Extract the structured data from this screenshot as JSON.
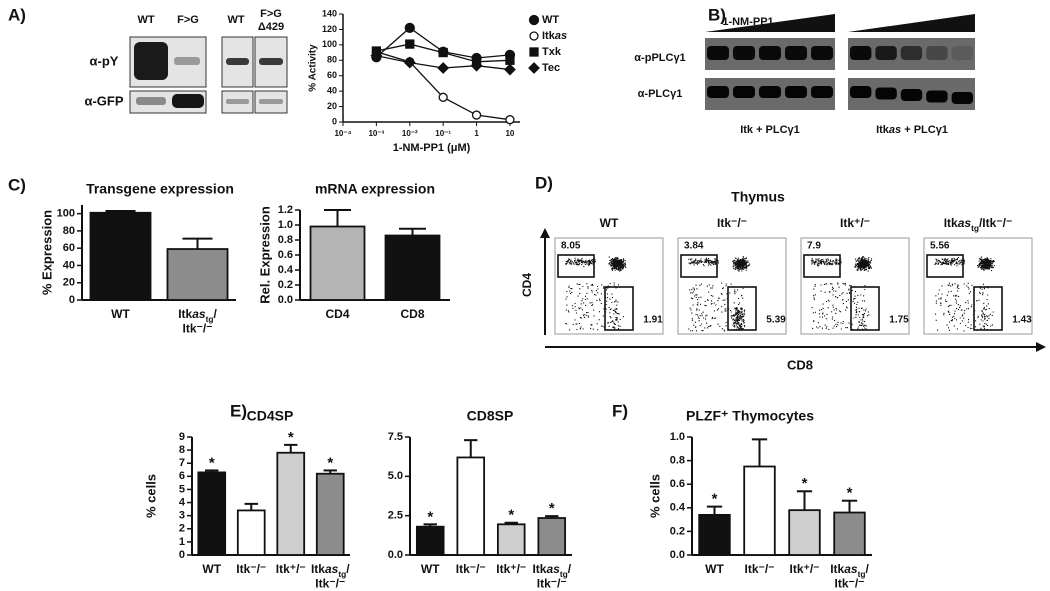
{
  "panel_labels": [
    "A)",
    "B)",
    "C)",
    "D)",
    "E)",
    "F)"
  ],
  "blot_a": {
    "lanes_left": [
      "WT",
      "F>G"
    ],
    "lanes_right": [
      "WT",
      [
        [
          "F>G"
        ],
        [
          "Δ429"
        ]
      ]
    ],
    "rows": [
      "α-pY",
      "α-GFP"
    ]
  },
  "blot_b": {
    "treatment": "1-NM-PP1",
    "rows": [
      "α-pPLCγ1",
      "α-PLCγ1"
    ],
    "groups": [
      "Itk + PLCγ1",
      [
        "Itk",
        {
          "text": "as",
          "style": "i"
        },
        " + PLCγ1"
      ]
    ]
  },
  "flow": {
    "title": "Thymus",
    "y_label": "CD4",
    "x_label": "CD8",
    "plots": [
      {
        "title": "WT",
        "cd4": "8.05",
        "cd8": "1.91"
      },
      {
        "title": "Itk⁻/⁻",
        "cd4": "3.84",
        "cd8": "5.39"
      },
      {
        "title": "Itk⁺/⁻",
        "cd4": "7.9",
        "cd8": "1.75"
      },
      {
        "title": [
          "Itk",
          {
            "text": "as",
            "style": "i"
          },
          {
            "text": "tg",
            "style": "sub"
          },
          "/Itk⁻/⁻"
        ],
        "cd4": "5.56",
        "cd8": "1.43"
      }
    ]
  },
  "chart_data": [
    {
      "type": "line",
      "x_label": "1-NM-PP1 (μM)",
      "y_label": "% Activity",
      "xlog": true,
      "x": [
        0.001,
        0.01,
        0.1,
        1,
        10
      ],
      "xlim": [
        0.0001,
        20
      ],
      "xticks": [
        {
          "value": 0.0001,
          "label": "10⁻⁴"
        },
        {
          "value": 0.001,
          "label": "10⁻³"
        },
        {
          "value": 0.01,
          "label": "10⁻²"
        },
        {
          "value": 0.1,
          "label": "10⁻¹"
        },
        1,
        10
      ],
      "ylim": [
        0,
        140
      ],
      "yticks": [
        0,
        20,
        40,
        60,
        80,
        100,
        120,
        140
      ],
      "legend": "right",
      "series": [
        {
          "name": "WT",
          "marker": "circle",
          "color": "#111111",
          "values": [
            84,
            122,
            91,
            83,
            87
          ]
        },
        {
          "name": [
            "Itk",
            {
              "text": "as",
              "style": "i"
            }
          ],
          "marker": "open-circle",
          "color": "#111111",
          "values": [
            91,
            78,
            32,
            9,
            3
          ]
        },
        {
          "name": "Txk",
          "marker": "square",
          "color": "#111111",
          "values": [
            92,
            101,
            90,
            78,
            80
          ]
        },
        {
          "name": "Tec",
          "marker": "diamond",
          "color": "#111111",
          "values": [
            86,
            77,
            70,
            73,
            68
          ]
        }
      ]
    },
    {
      "type": "bar",
      "title": "Transgene expression",
      "y_label": "% Expression",
      "categories": [
        "WT",
        [
          [
            "Itk",
            {
              "text": "as",
              "style": "i"
            },
            {
              "text": "tg",
              "style": "sub"
            },
            "/"
          ],
          [
            "Itk⁻/⁻"
          ]
        ]
      ],
      "values": [
        101,
        59
      ],
      "errors": [
        2,
        12
      ],
      "colors": [
        "#111111",
        "#8c8c8c"
      ],
      "ylim": [
        0,
        110
      ],
      "yticks": [
        0,
        20,
        40,
        60,
        80,
        100
      ]
    },
    {
      "type": "bar",
      "title": "mRNA expression",
      "y_label": "Rel. Expression",
      "categories": [
        "CD4",
        "CD8"
      ],
      "values": [
        0.98,
        0.86
      ],
      "errors": [
        0.22,
        0.09
      ],
      "colors": [
        "#b4b4b4",
        "#111111"
      ],
      "ylim": [
        0,
        1.2
      ],
      "yticks": [
        {
          "value": 0,
          "label": "0.0"
        },
        0.2,
        0.4,
        0.6,
        0.8,
        {
          "value": 1,
          "label": "1.0"
        },
        1.2
      ]
    },
    {
      "type": "bar",
      "title": "CD4SP",
      "y_label": "% cells",
      "categories": [
        "WT",
        "Itk⁻/⁻",
        "Itk⁺/⁻",
        [
          [
            "Itk",
            {
              "text": "as",
              "style": "i"
            },
            {
              "text": "tg",
              "style": "sub"
            },
            "/"
          ],
          [
            "Itk⁻/⁻"
          ]
        ]
      ],
      "values": [
        6.3,
        3.4,
        7.8,
        6.2
      ],
      "errors": [
        0.15,
        0.5,
        0.6,
        0.25
      ],
      "annotations": [
        "*",
        null,
        "*",
        "*"
      ],
      "colors": [
        "#111111",
        "#ffffff",
        "#cfcfcf",
        "#8c8c8c"
      ],
      "ylim": [
        0,
        9
      ],
      "yticks": [
        0,
        1,
        2,
        3,
        4,
        5,
        6,
        7,
        8,
        9
      ]
    },
    {
      "type": "bar",
      "title": "CD8SP",
      "categories": [
        "WT",
        "Itk⁻/⁻",
        "Itk⁺/⁻",
        [
          [
            "Itk",
            {
              "text": "as",
              "style": "i"
            },
            {
              "text": "tg",
              "style": "sub"
            },
            "/"
          ],
          [
            "Itk⁻/⁻"
          ]
        ]
      ],
      "values": [
        1.8,
        6.2,
        1.95,
        2.35
      ],
      "errors": [
        0.15,
        1.1,
        0.1,
        0.12
      ],
      "annotations": [
        "*",
        null,
        "*",
        "*"
      ],
      "colors": [
        "#111111",
        "#ffffff",
        "#cfcfcf",
        "#8c8c8c"
      ],
      "ylim": [
        0,
        7.5
      ],
      "yticks": [
        {
          "value": 0,
          "label": "0.0"
        },
        2.5,
        {
          "value": 5,
          "label": "5.0"
        },
        7.5
      ]
    },
    {
      "type": "bar",
      "title": "PLZF⁺ Thymocytes",
      "y_label": "% cells",
      "categories": [
        "WT",
        "Itk⁻/⁻",
        "Itk⁺/⁻",
        [
          [
            "Itk",
            {
              "text": "as",
              "style": "i"
            },
            {
              "text": "tg",
              "style": "sub"
            },
            "/"
          ],
          [
            "Itk⁻/⁻"
          ]
        ]
      ],
      "values": [
        0.34,
        0.75,
        0.38,
        0.36
      ],
      "errors": [
        0.07,
        0.23,
        0.16,
        0.1
      ],
      "annotations": [
        "*",
        null,
        "*",
        "*"
      ],
      "colors": [
        "#111111",
        "#ffffff",
        "#cfcfcf",
        "#8c8c8c"
      ],
      "ylim": [
        0,
        1
      ],
      "yticks": [
        {
          "value": 0,
          "label": "0.0"
        },
        0.2,
        0.4,
        0.6,
        0.8,
        {
          "value": 1,
          "label": "1.0"
        }
      ]
    }
  ]
}
